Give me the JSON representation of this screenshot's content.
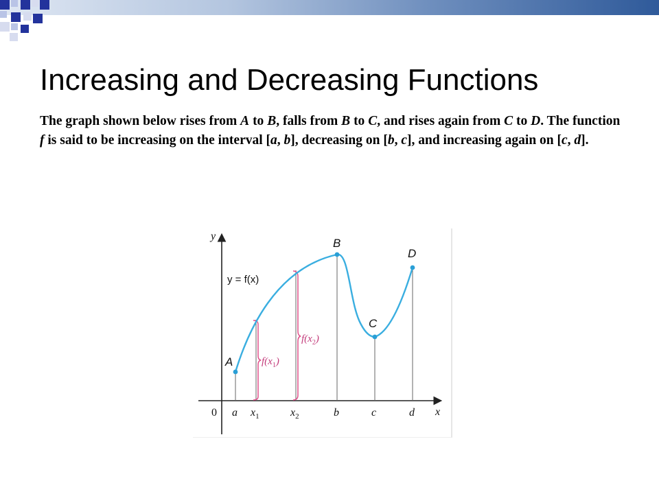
{
  "slide": {
    "title": "Increasing and Decreasing Functions",
    "paragraph": [
      {
        "t": "The graph shown below rises from "
      },
      {
        "t": "A",
        "i": true
      },
      {
        "t": " to "
      },
      {
        "t": "B",
        "i": true
      },
      {
        "t": ", falls from   "
      },
      {
        "t": "B",
        "i": true
      },
      {
        "t": " to "
      },
      {
        "t": "C",
        "i": true
      },
      {
        "t": ", and rises again from "
      },
      {
        "t": "C",
        "i": true
      },
      {
        "t": " to "
      },
      {
        "t": "D",
        "i": true
      },
      {
        "t": ". The function "
      },
      {
        "t": "f",
        "i": true
      },
      {
        "t": " is said to be increasing on the interval ["
      },
      {
        "t": "a",
        "i": true
      },
      {
        "t": ", "
      },
      {
        "t": "b",
        "i": true
      },
      {
        "t": "], decreasing on ["
      },
      {
        "t": "b",
        "i": true
      },
      {
        "t": ", "
      },
      {
        "t": "c",
        "i": true
      },
      {
        "t": "], and increasing again on ["
      },
      {
        "t": "c",
        "i": true
      },
      {
        "t": ", "
      },
      {
        "t": "d",
        "i": true
      },
      {
        "t": "]."
      }
    ]
  },
  "figure": {
    "axis_x": "x",
    "axis_y": "y",
    "origin": "0",
    "curve_label": "y = f(x)",
    "points": {
      "A": "A",
      "B": "B",
      "C": "C",
      "D": "D"
    },
    "ticks": {
      "a": "a",
      "x1": "x",
      "x1_sub": "1",
      "x2": "x",
      "x2_sub": "2",
      "b": "b",
      "c": "c",
      "d": "d"
    },
    "brace_label_1": "f(x",
    "brace_label_1_sub": "1",
    "brace_label_2": "f(x",
    "brace_label_2_sub": "2",
    "colors": {
      "curve": "#3aaee0",
      "brace": "#e0508a",
      "axis": "#222222",
      "verticals": "#555555",
      "points": "#2a9fd6"
    }
  },
  "theme": {
    "band_colors": [
      "#dfe7f3",
      "#2f5a9a"
    ],
    "square_dark": "#23339c",
    "square_light": "#b9c4e6"
  }
}
